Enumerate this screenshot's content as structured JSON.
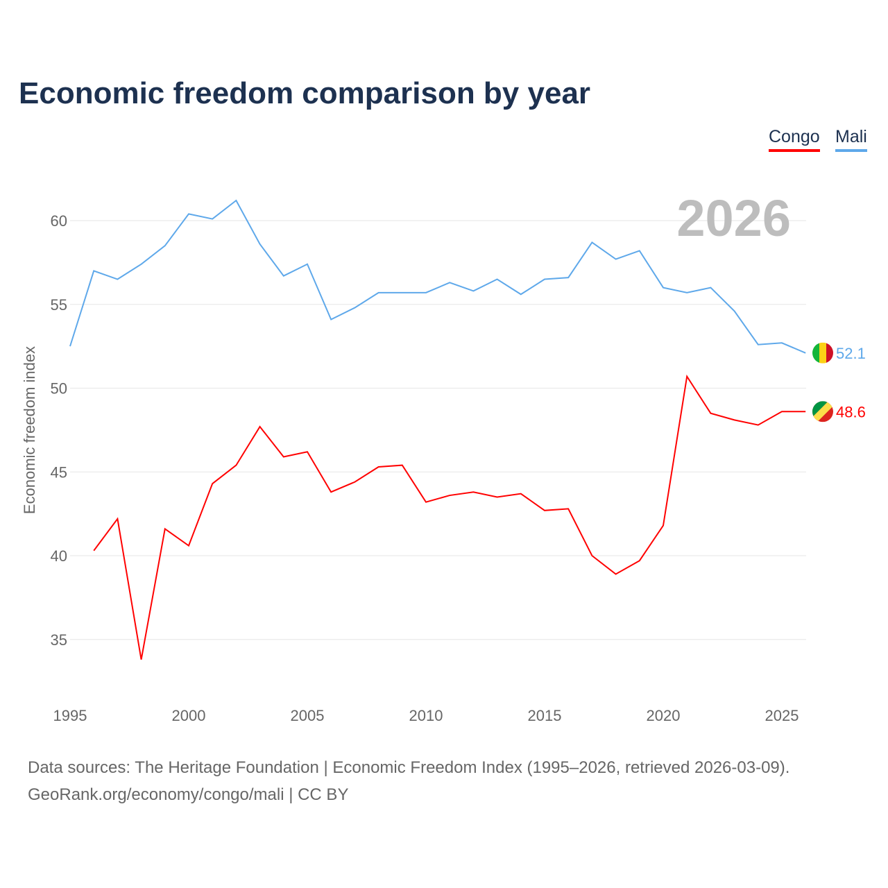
{
  "chart_data": {
    "type": "line",
    "title": "Economic freedom comparison by year",
    "ylabel": "Economic freedom index",
    "xlabel": "",
    "ylim": [
      32,
      62
    ],
    "xlim": [
      1995,
      2026
    ],
    "yticks": [
      35,
      40,
      45,
      50,
      55,
      60
    ],
    "xticks": [
      1995,
      2000,
      2005,
      2010,
      2015,
      2020,
      2025
    ],
    "grid": true,
    "legend_position": "top-right",
    "year_watermark": "2026",
    "series": [
      {
        "name": "Congo",
        "color": "#ff0000",
        "end_label": "48.6",
        "x": [
          1996,
          1997,
          1998,
          1999,
          2000,
          2001,
          2002,
          2003,
          2004,
          2005,
          2006,
          2007,
          2008,
          2009,
          2010,
          2011,
          2012,
          2013,
          2014,
          2015,
          2016,
          2017,
          2018,
          2019,
          2020,
          2021,
          2022,
          2023,
          2024,
          2025,
          2026
        ],
        "values": [
          40.3,
          42.2,
          33.8,
          41.6,
          40.6,
          44.3,
          45.4,
          47.7,
          45.9,
          46.2,
          43.8,
          44.4,
          45.3,
          45.4,
          43.2,
          43.6,
          43.8,
          43.5,
          43.7,
          42.7,
          42.8,
          40.0,
          38.9,
          39.7,
          41.8,
          50.7,
          48.5,
          48.1,
          47.8,
          48.6,
          48.6
        ]
      },
      {
        "name": "Mali",
        "color": "#5ea8ea",
        "end_label": "52.1",
        "x": [
          1995,
          1996,
          1997,
          1998,
          1999,
          2000,
          2001,
          2002,
          2003,
          2004,
          2005,
          2006,
          2007,
          2008,
          2009,
          2010,
          2011,
          2012,
          2013,
          2014,
          2015,
          2016,
          2017,
          2018,
          2019,
          2020,
          2021,
          2022,
          2023,
          2024,
          2025,
          2026
        ],
        "values": [
          52.5,
          57.0,
          56.5,
          57.4,
          58.5,
          60.4,
          60.1,
          61.2,
          58.6,
          56.7,
          57.4,
          54.1,
          54.8,
          55.7,
          55.7,
          55.7,
          56.3,
          55.8,
          56.5,
          55.6,
          56.5,
          56.6,
          58.7,
          57.7,
          58.2,
          56.0,
          55.7,
          56.0,
          54.6,
          52.6,
          52.7,
          52.1
        ]
      }
    ]
  },
  "source_line1": "Data sources: The Heritage Foundation | Economic Freedom Index (1995–2026, retrieved 2026-03-09).",
  "source_line2": "GeoRank.org/economy/congo/mali | CC BY"
}
